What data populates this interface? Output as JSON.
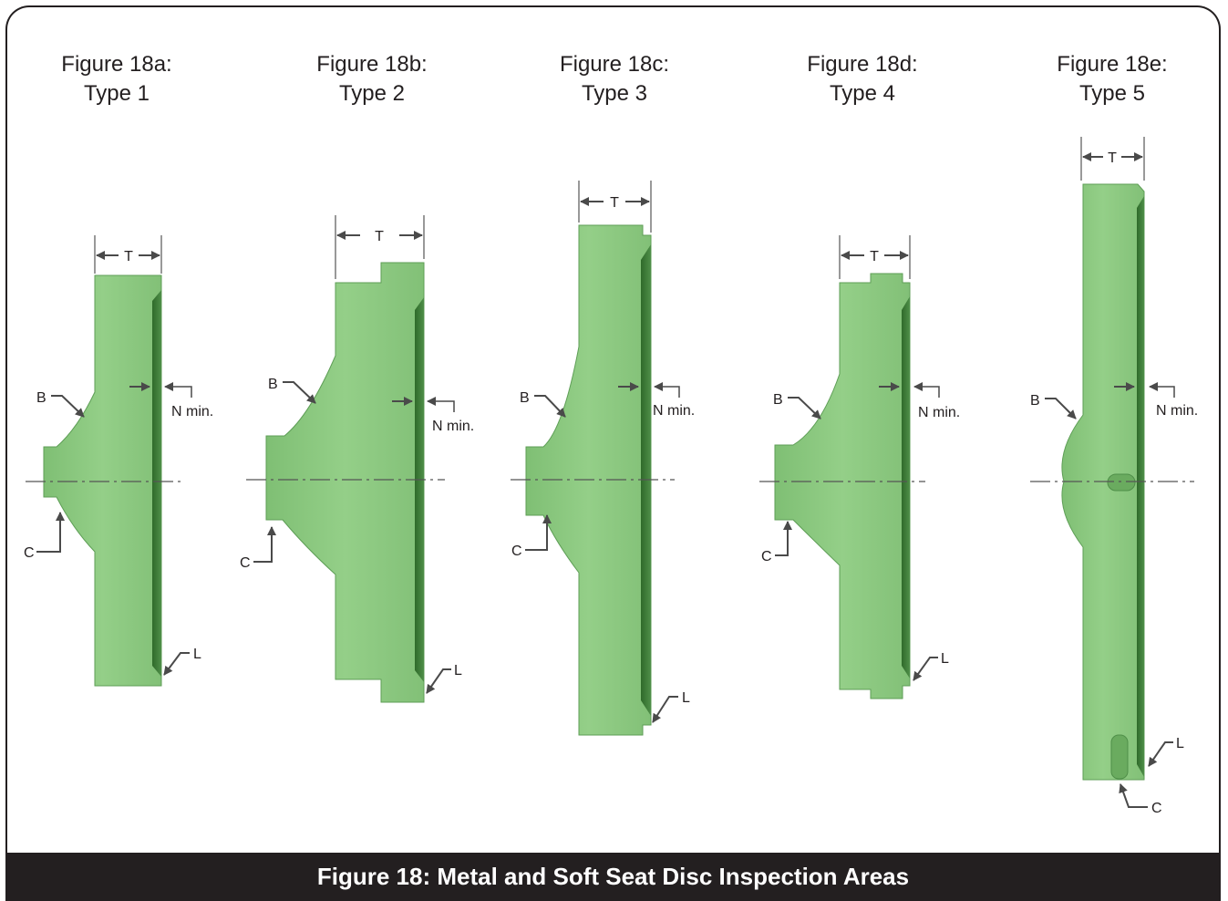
{
  "caption": "Figure 18:  Metal and Soft Seat Disc Inspection Areas",
  "colors": {
    "disc_fill": "#8ecb82",
    "disc_edge": "#4f8f49",
    "seat_dark": "#3f7a38",
    "ink": "#231f20",
    "caption_bg": "#231f20"
  },
  "figures": [
    {
      "line1": "Figure 18a:",
      "line2": "Type 1",
      "t": "T",
      "b": "B",
      "c": "C",
      "n": "N min.",
      "l": "L"
    },
    {
      "line1": "Figure 18b:",
      "line2": "Type 2",
      "t": "T",
      "b": "B",
      "c": "C",
      "n": "N min.",
      "l": "L"
    },
    {
      "line1": "Figure 18c:",
      "line2": "Type 3",
      "t": "T",
      "b": "B",
      "c": "C",
      "n": "N min.",
      "l": "L"
    },
    {
      "line1": "Figure 18d:",
      "line2": "Type 4",
      "t": "T",
      "b": "B",
      "c": "C",
      "n": "N min.",
      "l": "L"
    },
    {
      "line1": "Figure 18e:",
      "line2": "Type 5",
      "t": "T",
      "b": "B",
      "c": "C",
      "n": "N min.",
      "l": "L"
    }
  ]
}
